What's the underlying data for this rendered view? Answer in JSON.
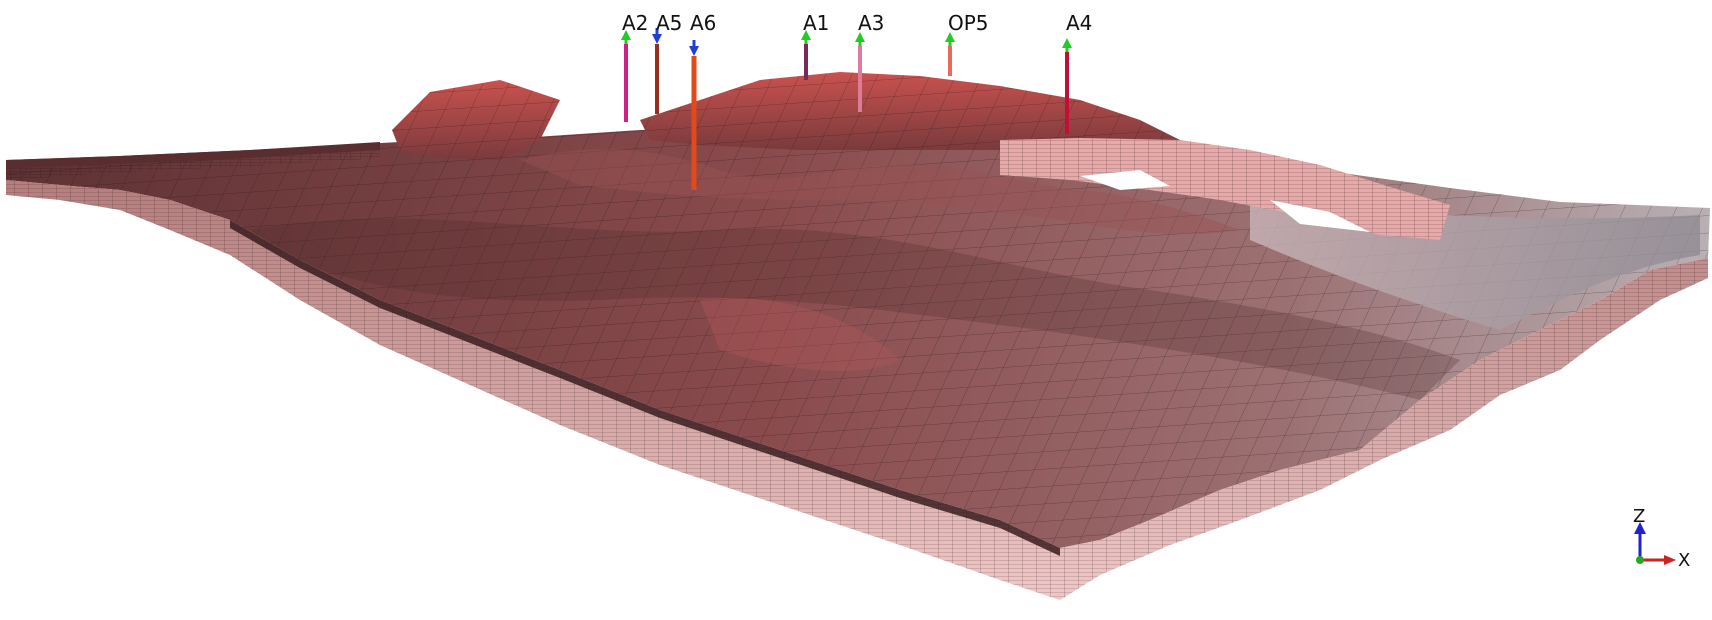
{
  "wells": [
    {
      "name": "A2",
      "color": "#d11f8a",
      "marker": "up",
      "marker_color": "#22cc22"
    },
    {
      "name": "A5",
      "color": "#9a2e1c",
      "marker": "down",
      "marker_color": "#1f3fd6"
    },
    {
      "name": "A6",
      "color": "#e24a1a",
      "marker": "down",
      "marker_color": "#1f3fd6"
    },
    {
      "name": "A1",
      "color": "#7a2a5a",
      "marker": "up",
      "marker_color": "#22cc22"
    },
    {
      "name": "A3",
      "color": "#e07a9a",
      "marker": "up",
      "marker_color": "#22cc22"
    },
    {
      "name": "OP5",
      "color": "#e86a5a",
      "marker": "up",
      "marker_color": "#22cc22"
    },
    {
      "name": "A4",
      "color": "#c0103a",
      "marker": "up",
      "marker_color": "#22cc22"
    }
  ],
  "axes": {
    "z_label": "Z",
    "x_label": "X",
    "z_color": "#2222cc",
    "x_color": "#cc2222",
    "origin_color": "#22aa22"
  },
  "colors": {
    "surface_dark": "#6e3a3c",
    "surface_mid": "#8f4c4c",
    "surface_light": "#c8a6a8",
    "side_face": "#e9b4b4",
    "grid_line": "#1a1010"
  }
}
